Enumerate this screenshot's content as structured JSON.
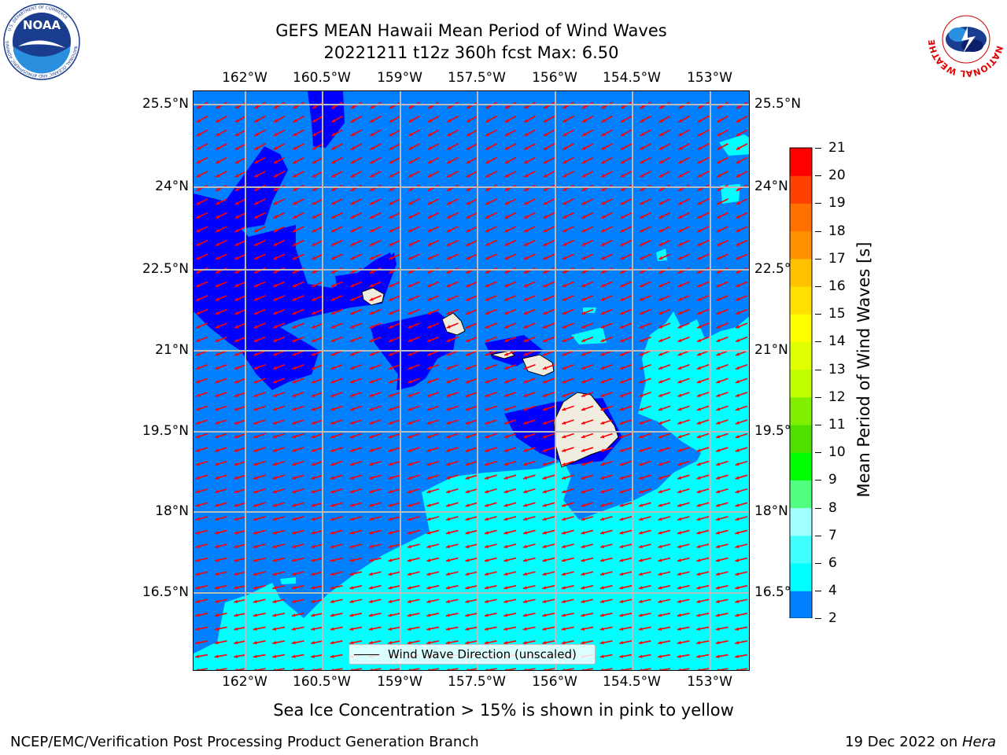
{
  "header": {
    "title_line1": "GEFS MEAN Hawaii Mean Period of Wind Waves",
    "title_line2": "20221211 t12z 360h fcst   Max: 6.50"
  },
  "logos": {
    "noaa_text": "NOAA",
    "noaa_ring_text": "NATIONAL OCEANIC AND ATMOSPHERIC ADMINISTRATION",
    "noaa_bottom_text": "U.S. DEPARTMENT OF COMMERCE",
    "nws_ring_text": "NATIONAL WEATHER SERVICE"
  },
  "map": {
    "lon_labels": [
      "162°W",
      "160.5°W",
      "159°W",
      "157.5°W",
      "156°W",
      "154.5°W",
      "153°W"
    ],
    "lat_labels": [
      "25.5°N",
      "24°N",
      "22.5°N",
      "21°N",
      "19.5°N",
      "18°N",
      "16.5°N"
    ],
    "legend_label": "Wind Wave Direction (unscaled)",
    "arrow_color": "#ff0000",
    "sea_colors": {
      "band_2_4": "#0080ff",
      "band_below_2": "#0000ff",
      "band_4_6": "#00ffff"
    },
    "land_color": "#f0ede0"
  },
  "colorbar": {
    "label": "Mean Period of Wind Waves [s]",
    "ticks": [
      "2",
      "4",
      "6",
      "7",
      "8",
      "9",
      "10",
      "11",
      "12",
      "13",
      "14",
      "15",
      "16",
      "17",
      "18",
      "19",
      "20",
      "21"
    ],
    "colors": [
      "#0080ff",
      "#00ffff",
      "#40ffff",
      "#a0ffff",
      "#50ff80",
      "#00ff00",
      "#50e000",
      "#80f000",
      "#c0ff00",
      "#e0ff00",
      "#ffff00",
      "#ffe000",
      "#ffc000",
      "#ff9000",
      "#ff7000",
      "#ff4000",
      "#ff0000"
    ],
    "extend_color": "#0000ff"
  },
  "footer": {
    "note": "Sea Ice Concentration > 15% is shown in pink to yellow",
    "left": "NCEP/EMC/Verification Post Processing Product Generation Branch",
    "right_prefix": "19 Dec 2022 on ",
    "right_host": "Hera"
  }
}
